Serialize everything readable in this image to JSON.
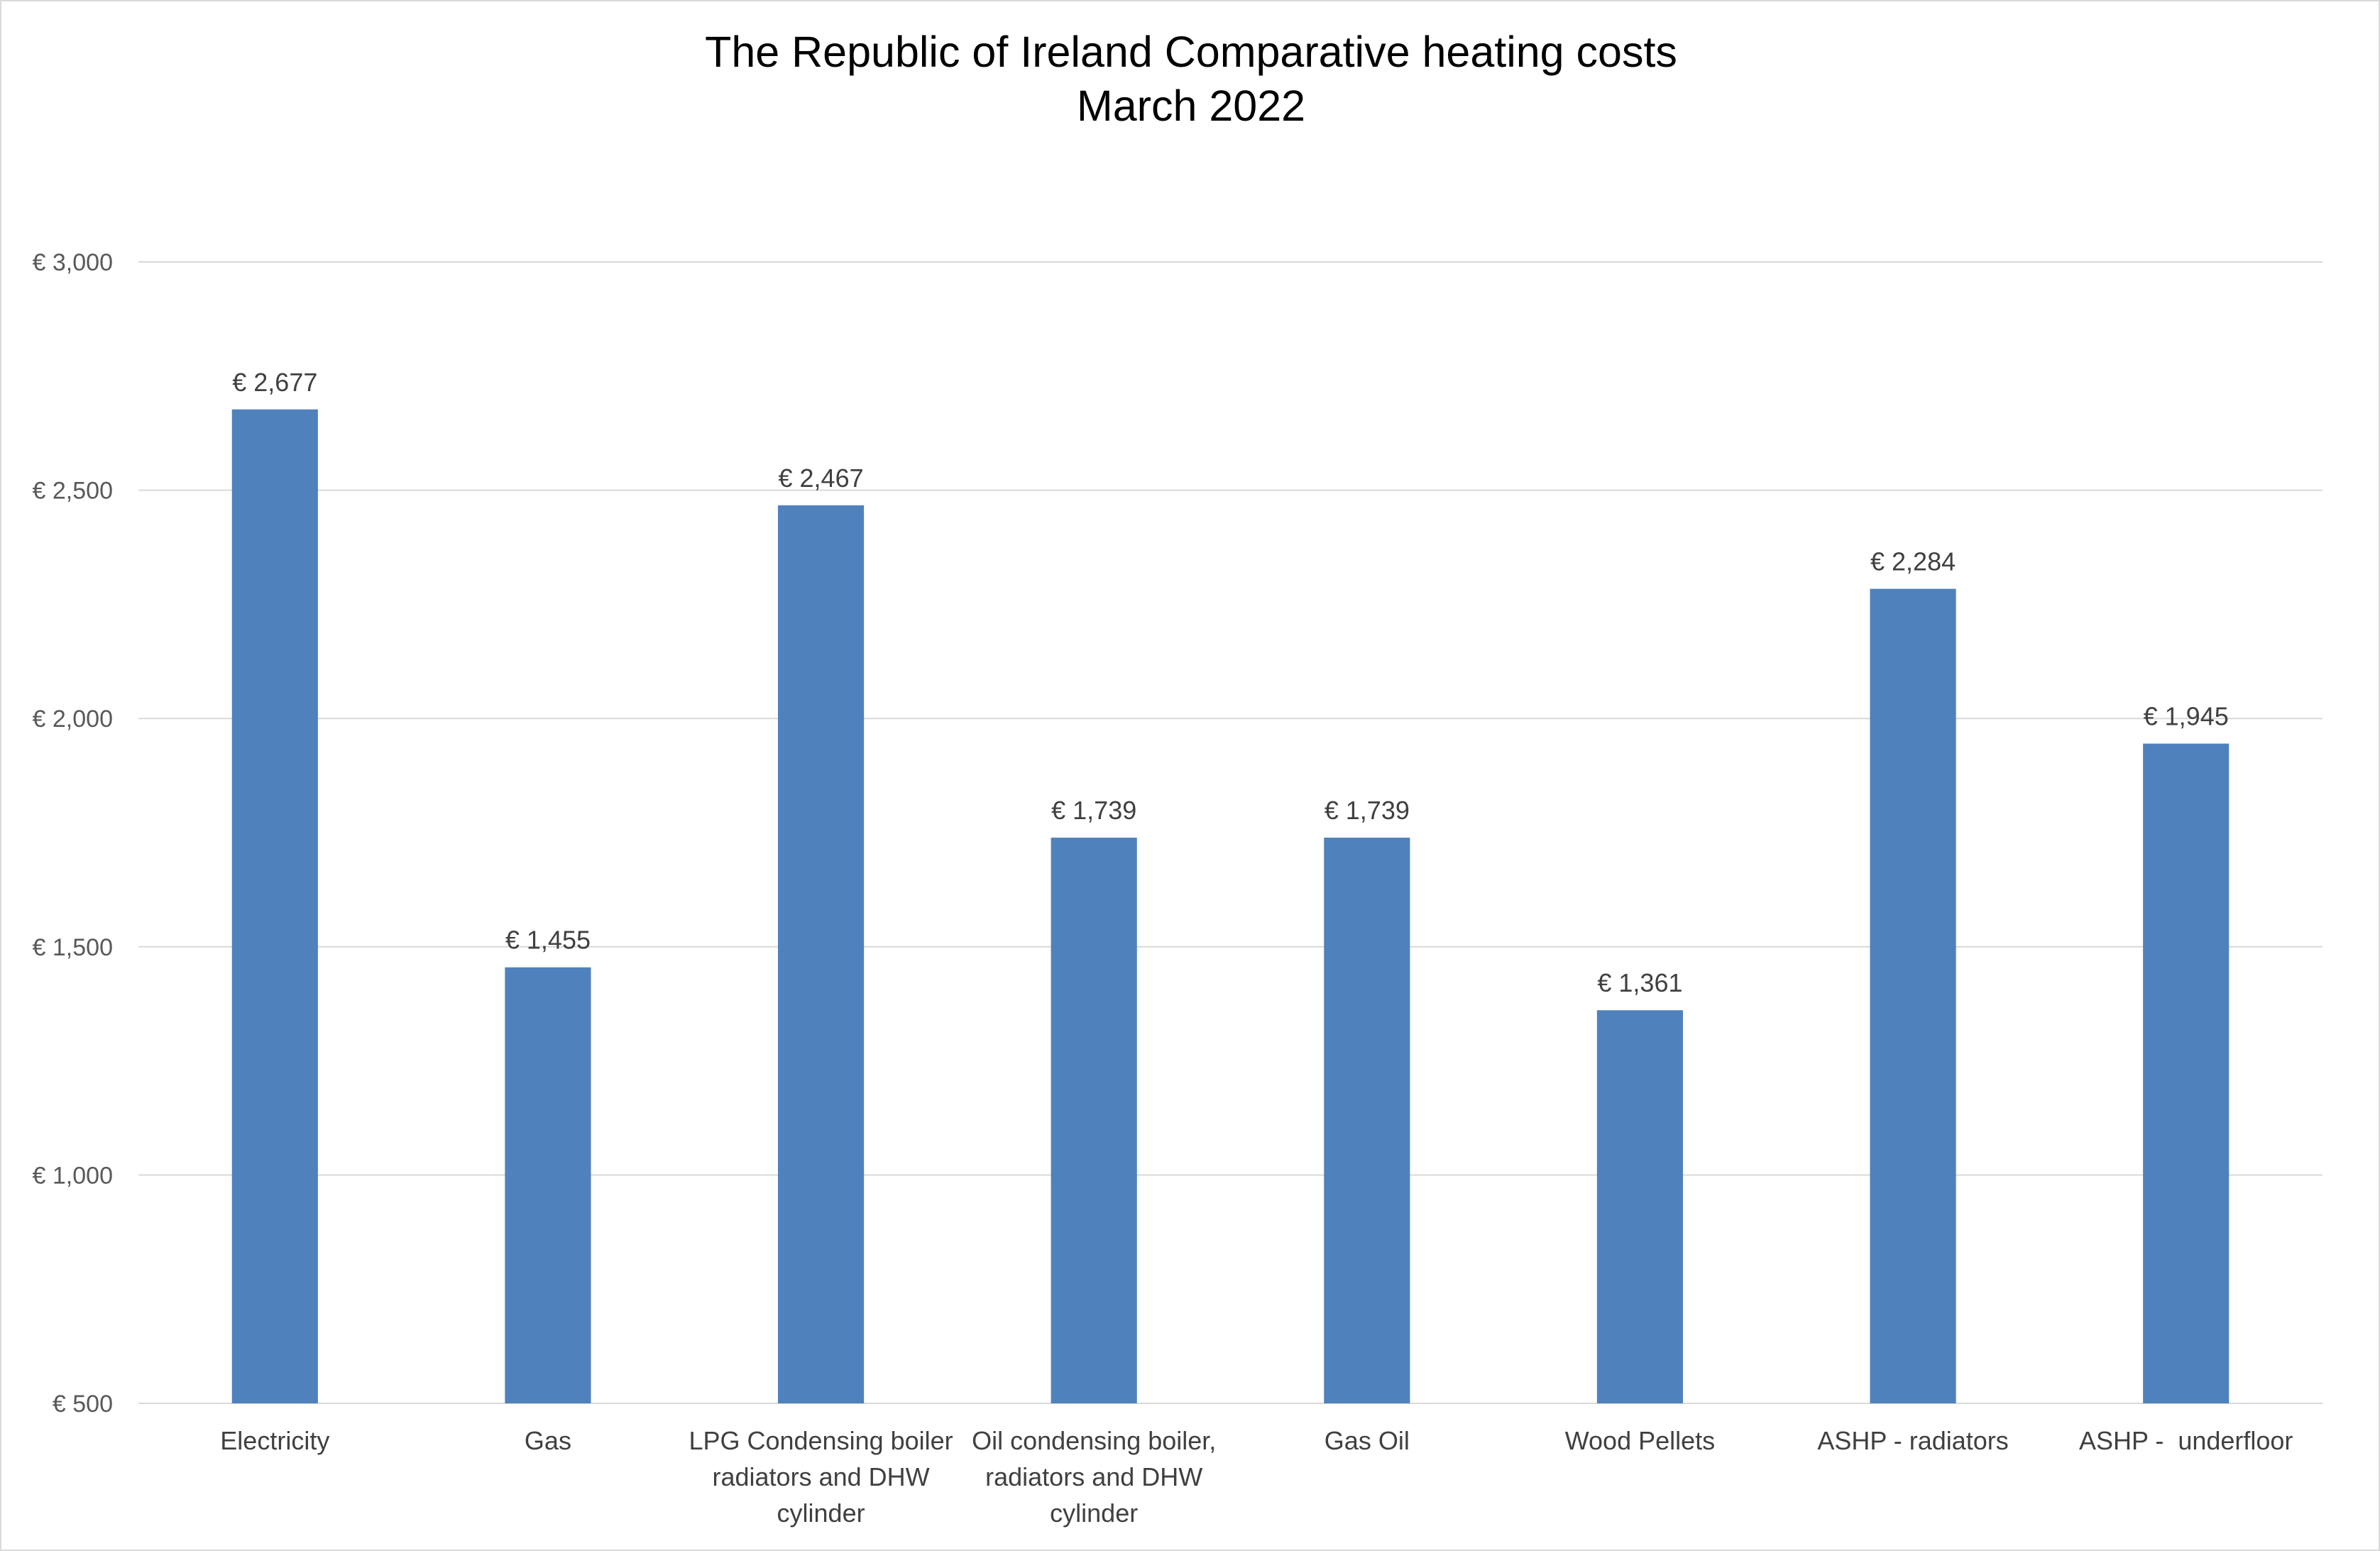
{
  "chart_data": {
    "type": "bar",
    "title": [
      "The Republic of Ireland Comparative heating costs",
      "March 2022"
    ],
    "categories": [
      [
        "Electricity"
      ],
      [
        "Gas"
      ],
      [
        "LPG Condensing boiler",
        "radiators and DHW",
        "cylinder"
      ],
      [
        "Oil condensing boiler,",
        "radiators and DHW",
        "cylinder"
      ],
      [
        "Gas Oil"
      ],
      [
        "Wood Pellets"
      ],
      [
        "ASHP - radiators"
      ],
      [
        "ASHP -  underfloor"
      ]
    ],
    "values": [
      2677,
      1455,
      2467,
      1739,
      1739,
      1361,
      2284,
      1945
    ],
    "data_labels": [
      "€ 2,677",
      "€ 1,455",
      "€ 2,467",
      "€ 1,739",
      "€ 1,739",
      "€ 1,361",
      "€ 2,284",
      "€ 1,945"
    ],
    "ylim": [
      500,
      3000
    ],
    "yticks": [
      500,
      1000,
      1500,
      2000,
      2500,
      3000
    ],
    "ytick_labels": [
      "€ 500",
      "€ 1,000",
      "€ 1,500",
      "€ 2,000",
      "€ 2,500",
      "€ 3,000"
    ],
    "xlabel": "",
    "ylabel": "",
    "grid": true,
    "legend": "none",
    "bar_color": "#4f81bd"
  }
}
